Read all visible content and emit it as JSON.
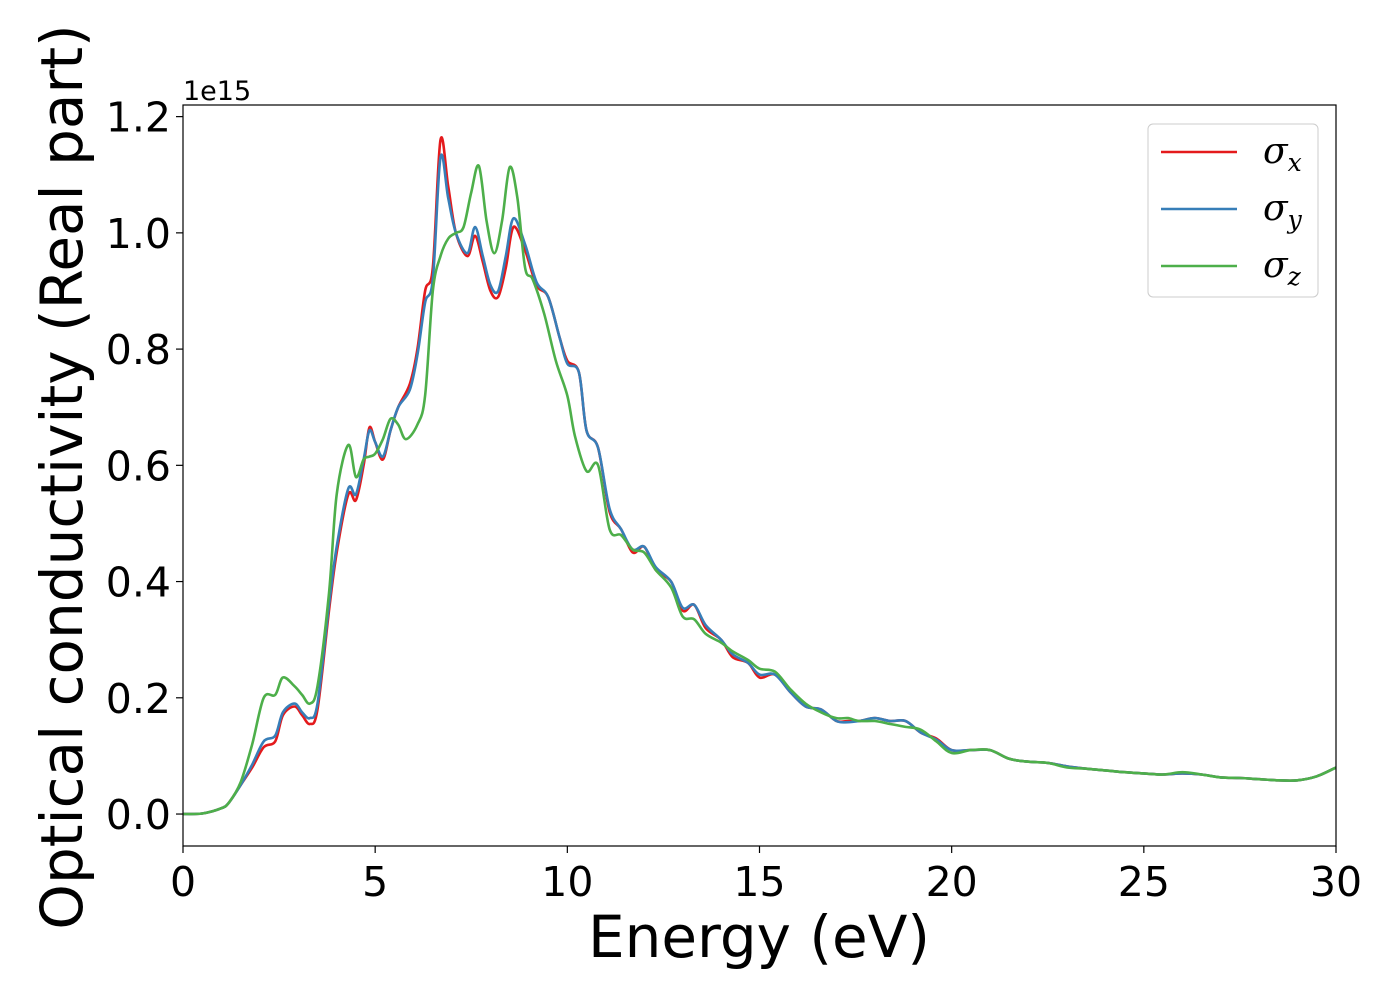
{
  "chart_data": {
    "type": "line",
    "xlabel": "Energy (eV)",
    "ylabel": "Optical conductivity (Real part)",
    "y_offset_label": "1e15",
    "xlim": [
      0,
      30
    ],
    "ylim": [
      -0.055,
      1.22
    ],
    "x_ticks": [
      0,
      5,
      10,
      15,
      20,
      25,
      30
    ],
    "x_tick_labels": [
      "0",
      "5",
      "10",
      "15",
      "20",
      "25",
      "30"
    ],
    "y_ticks": [
      0.0,
      0.2,
      0.4,
      0.6,
      0.8,
      1.0,
      1.2
    ],
    "y_tick_labels": [
      "0.0",
      "0.2",
      "0.4",
      "0.6",
      "0.8",
      "1.0",
      "1.2"
    ],
    "grid": false,
    "legend_position": "top-right",
    "series": [
      {
        "name": "σx",
        "legend_base": "σ",
        "legend_sub": "x",
        "color": "#e41a1c",
        "points": [
          [
            0,
            0
          ],
          [
            0.5,
            0.001
          ],
          [
            1,
            0.01
          ],
          [
            1.2,
            0.02
          ],
          [
            1.5,
            0.05
          ],
          [
            1.8,
            0.08
          ],
          [
            2.1,
            0.115
          ],
          [
            2.4,
            0.125
          ],
          [
            2.6,
            0.17
          ],
          [
            2.9,
            0.185
          ],
          [
            3.1,
            0.17
          ],
          [
            3.3,
            0.155
          ],
          [
            3.5,
            0.18
          ],
          [
            3.8,
            0.35
          ],
          [
            4.0,
            0.45
          ],
          [
            4.3,
            0.55
          ],
          [
            4.5,
            0.54
          ],
          [
            4.7,
            0.6
          ],
          [
            4.85,
            0.665
          ],
          [
            5.0,
            0.64
          ],
          [
            5.2,
            0.61
          ],
          [
            5.4,
            0.66
          ],
          [
            5.6,
            0.7
          ],
          [
            5.9,
            0.74
          ],
          [
            6.1,
            0.8
          ],
          [
            6.3,
            0.9
          ],
          [
            6.5,
            0.94
          ],
          [
            6.7,
            1.16
          ],
          [
            6.9,
            1.08
          ],
          [
            7.1,
            1.0
          ],
          [
            7.4,
            0.96
          ],
          [
            7.6,
            0.995
          ],
          [
            7.8,
            0.95
          ],
          [
            8.0,
            0.9
          ],
          [
            8.2,
            0.89
          ],
          [
            8.4,
            0.94
          ],
          [
            8.6,
            1.01
          ],
          [
            8.9,
            0.97
          ],
          [
            9.2,
            0.91
          ],
          [
            9.5,
            0.89
          ],
          [
            9.8,
            0.82
          ],
          [
            10.0,
            0.78
          ],
          [
            10.3,
            0.76
          ],
          [
            10.5,
            0.66
          ],
          [
            10.8,
            0.63
          ],
          [
            11.1,
            0.52
          ],
          [
            11.4,
            0.49
          ],
          [
            11.7,
            0.45
          ],
          [
            12.0,
            0.46
          ],
          [
            12.3,
            0.42
          ],
          [
            12.7,
            0.4
          ],
          [
            13.0,
            0.35
          ],
          [
            13.3,
            0.36
          ],
          [
            13.6,
            0.32
          ],
          [
            14.0,
            0.3
          ],
          [
            14.3,
            0.27
          ],
          [
            14.7,
            0.26
          ],
          [
            15.0,
            0.235
          ],
          [
            15.4,
            0.24
          ],
          [
            15.8,
            0.21
          ],
          [
            16.2,
            0.185
          ],
          [
            16.6,
            0.18
          ],
          [
            17.0,
            0.16
          ],
          [
            17.3,
            0.16
          ],
          [
            17.6,
            0.16
          ],
          [
            18.0,
            0.165
          ],
          [
            18.4,
            0.16
          ],
          [
            18.8,
            0.16
          ],
          [
            19.2,
            0.14
          ],
          [
            19.6,
            0.13
          ],
          [
            20.0,
            0.11
          ],
          [
            20.5,
            0.11
          ],
          [
            21.0,
            0.11
          ],
          [
            21.5,
            0.095
          ],
          [
            22.0,
            0.09
          ],
          [
            22.5,
            0.088
          ],
          [
            23.0,
            0.082
          ],
          [
            23.5,
            0.078
          ],
          [
            24.0,
            0.075
          ],
          [
            24.5,
            0.072
          ],
          [
            25.0,
            0.07
          ],
          [
            25.5,
            0.068
          ],
          [
            26.0,
            0.07
          ],
          [
            26.5,
            0.068
          ],
          [
            27.0,
            0.063
          ],
          [
            27.5,
            0.062
          ],
          [
            28.0,
            0.06
          ],
          [
            28.5,
            0.058
          ],
          [
            29.0,
            0.058
          ],
          [
            29.5,
            0.065
          ],
          [
            30.0,
            0.08
          ]
        ]
      },
      {
        "name": "σy",
        "legend_base": "σ",
        "legend_sub": "y",
        "color": "#377eb8",
        "points": [
          [
            0,
            0
          ],
          [
            0.5,
            0.001
          ],
          [
            1,
            0.01
          ],
          [
            1.2,
            0.02
          ],
          [
            1.5,
            0.05
          ],
          [
            1.8,
            0.085
          ],
          [
            2.1,
            0.125
          ],
          [
            2.4,
            0.135
          ],
          [
            2.6,
            0.175
          ],
          [
            2.9,
            0.19
          ],
          [
            3.1,
            0.175
          ],
          [
            3.3,
            0.165
          ],
          [
            3.5,
            0.19
          ],
          [
            3.8,
            0.36
          ],
          [
            4.0,
            0.46
          ],
          [
            4.3,
            0.56
          ],
          [
            4.5,
            0.55
          ],
          [
            4.7,
            0.61
          ],
          [
            4.85,
            0.66
          ],
          [
            5.0,
            0.64
          ],
          [
            5.2,
            0.615
          ],
          [
            5.4,
            0.66
          ],
          [
            5.6,
            0.7
          ],
          [
            5.9,
            0.73
          ],
          [
            6.1,
            0.79
          ],
          [
            6.3,
            0.88
          ],
          [
            6.5,
            0.92
          ],
          [
            6.7,
            1.13
          ],
          [
            6.9,
            1.06
          ],
          [
            7.1,
            1.0
          ],
          [
            7.4,
            0.965
          ],
          [
            7.6,
            1.01
          ],
          [
            7.8,
            0.96
          ],
          [
            8.0,
            0.91
          ],
          [
            8.2,
            0.9
          ],
          [
            8.4,
            0.96
          ],
          [
            8.6,
            1.025
          ],
          [
            8.9,
            0.98
          ],
          [
            9.2,
            0.915
          ],
          [
            9.5,
            0.89
          ],
          [
            9.8,
            0.82
          ],
          [
            10.0,
            0.775
          ],
          [
            10.3,
            0.76
          ],
          [
            10.5,
            0.66
          ],
          [
            10.8,
            0.63
          ],
          [
            11.1,
            0.525
          ],
          [
            11.4,
            0.49
          ],
          [
            11.7,
            0.455
          ],
          [
            12.0,
            0.46
          ],
          [
            12.3,
            0.425
          ],
          [
            12.7,
            0.4
          ],
          [
            13.0,
            0.355
          ],
          [
            13.3,
            0.36
          ],
          [
            13.6,
            0.325
          ],
          [
            14.0,
            0.3
          ],
          [
            14.3,
            0.275
          ],
          [
            14.7,
            0.26
          ],
          [
            15.0,
            0.24
          ],
          [
            15.4,
            0.24
          ],
          [
            15.8,
            0.21
          ],
          [
            16.2,
            0.185
          ],
          [
            16.6,
            0.18
          ],
          [
            17.0,
            0.16
          ],
          [
            17.3,
            0.158
          ],
          [
            17.6,
            0.16
          ],
          [
            18.0,
            0.165
          ],
          [
            18.4,
            0.16
          ],
          [
            18.8,
            0.16
          ],
          [
            19.2,
            0.14
          ],
          [
            19.6,
            0.128
          ],
          [
            20.0,
            0.11
          ],
          [
            20.5,
            0.11
          ],
          [
            21.0,
            0.11
          ],
          [
            21.5,
            0.095
          ],
          [
            22.0,
            0.09
          ],
          [
            22.5,
            0.088
          ],
          [
            23.0,
            0.082
          ],
          [
            23.5,
            0.078
          ],
          [
            24.0,
            0.075
          ],
          [
            24.5,
            0.072
          ],
          [
            25.0,
            0.07
          ],
          [
            25.5,
            0.068
          ],
          [
            26.0,
            0.07
          ],
          [
            26.5,
            0.068
          ],
          [
            27.0,
            0.063
          ],
          [
            27.5,
            0.062
          ],
          [
            28.0,
            0.06
          ],
          [
            28.5,
            0.058
          ],
          [
            29.0,
            0.058
          ],
          [
            29.5,
            0.065
          ],
          [
            30.0,
            0.08
          ]
        ]
      },
      {
        "name": "σz",
        "legend_base": "σ",
        "legend_sub": "z",
        "color": "#4daf4a",
        "points": [
          [
            0,
            0
          ],
          [
            0.5,
            0.001
          ],
          [
            1,
            0.01
          ],
          [
            1.2,
            0.02
          ],
          [
            1.5,
            0.055
          ],
          [
            1.8,
            0.12
          ],
          [
            2.1,
            0.2
          ],
          [
            2.4,
            0.205
          ],
          [
            2.6,
            0.235
          ],
          [
            2.9,
            0.22
          ],
          [
            3.1,
            0.205
          ],
          [
            3.3,
            0.19
          ],
          [
            3.5,
            0.22
          ],
          [
            3.8,
            0.38
          ],
          [
            4.0,
            0.55
          ],
          [
            4.3,
            0.635
          ],
          [
            4.5,
            0.58
          ],
          [
            4.7,
            0.61
          ],
          [
            4.85,
            0.615
          ],
          [
            5.0,
            0.62
          ],
          [
            5.2,
            0.645
          ],
          [
            5.4,
            0.68
          ],
          [
            5.6,
            0.67
          ],
          [
            5.8,
            0.645
          ],
          [
            6.1,
            0.67
          ],
          [
            6.3,
            0.72
          ],
          [
            6.5,
            0.9
          ],
          [
            6.7,
            0.96
          ],
          [
            6.9,
            0.99
          ],
          [
            7.1,
            1.0
          ],
          [
            7.3,
            1.01
          ],
          [
            7.5,
            1.07
          ],
          [
            7.7,
            1.115
          ],
          [
            7.9,
            1.02
          ],
          [
            8.1,
            0.965
          ],
          [
            8.3,
            1.02
          ],
          [
            8.5,
            1.113
          ],
          [
            8.7,
            1.06
          ],
          [
            8.9,
            0.94
          ],
          [
            9.1,
            0.92
          ],
          [
            9.4,
            0.86
          ],
          [
            9.7,
            0.78
          ],
          [
            10.0,
            0.72
          ],
          [
            10.2,
            0.65
          ],
          [
            10.5,
            0.59
          ],
          [
            10.8,
            0.6
          ],
          [
            11.1,
            0.49
          ],
          [
            11.4,
            0.48
          ],
          [
            11.7,
            0.455
          ],
          [
            12.0,
            0.45
          ],
          [
            12.3,
            0.42
          ],
          [
            12.7,
            0.39
          ],
          [
            13.0,
            0.34
          ],
          [
            13.3,
            0.335
          ],
          [
            13.6,
            0.31
          ],
          [
            14.0,
            0.295
          ],
          [
            14.3,
            0.28
          ],
          [
            14.7,
            0.265
          ],
          [
            15.0,
            0.25
          ],
          [
            15.4,
            0.245
          ],
          [
            15.8,
            0.215
          ],
          [
            16.2,
            0.19
          ],
          [
            16.6,
            0.175
          ],
          [
            17.0,
            0.165
          ],
          [
            17.3,
            0.165
          ],
          [
            17.6,
            0.16
          ],
          [
            18.0,
            0.16
          ],
          [
            18.4,
            0.155
          ],
          [
            18.8,
            0.15
          ],
          [
            19.2,
            0.145
          ],
          [
            19.6,
            0.125
          ],
          [
            20.0,
            0.105
          ],
          [
            20.5,
            0.11
          ],
          [
            21.0,
            0.11
          ],
          [
            21.5,
            0.095
          ],
          [
            22.0,
            0.09
          ],
          [
            22.5,
            0.088
          ],
          [
            23.0,
            0.08
          ],
          [
            23.5,
            0.078
          ],
          [
            24.0,
            0.075
          ],
          [
            24.5,
            0.072
          ],
          [
            25.0,
            0.07
          ],
          [
            25.5,
            0.068
          ],
          [
            26.0,
            0.072
          ],
          [
            26.5,
            0.068
          ],
          [
            27.0,
            0.063
          ],
          [
            27.5,
            0.062
          ],
          [
            28.0,
            0.06
          ],
          [
            28.5,
            0.058
          ],
          [
            29.0,
            0.058
          ],
          [
            29.5,
            0.065
          ],
          [
            30.0,
            0.08
          ]
        ]
      }
    ]
  }
}
